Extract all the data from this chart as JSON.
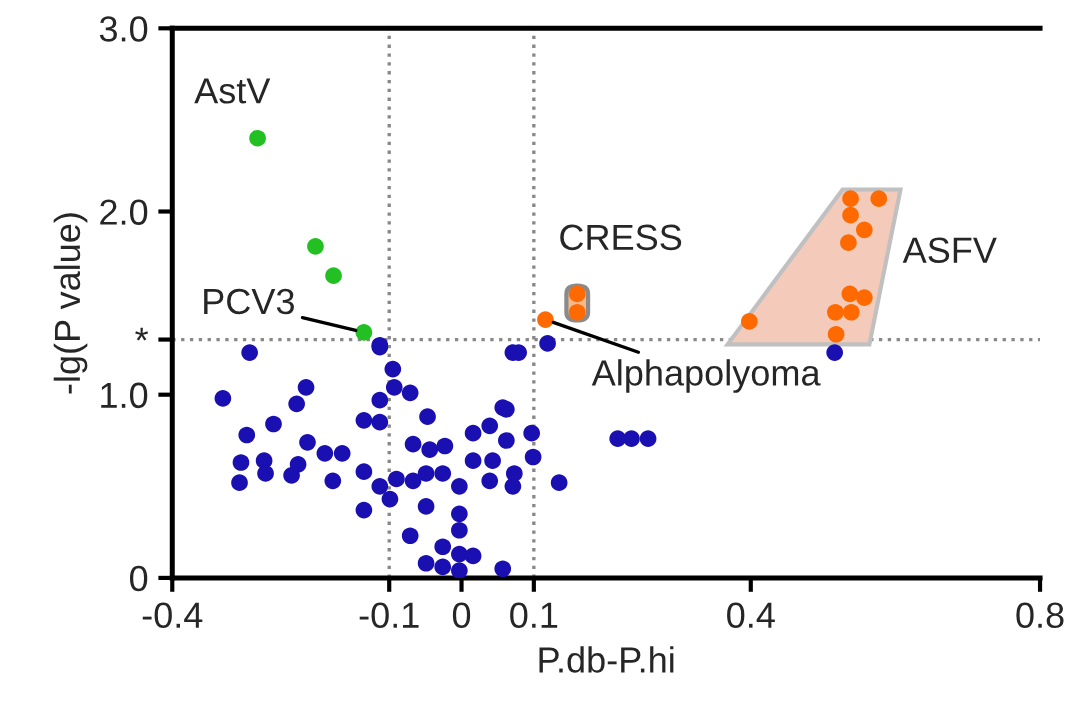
{
  "chart_data": {
    "type": "scatter",
    "xlabel": "P.db-P.hi",
    "ylabel": "-lg(P value)",
    "xlim": [
      -0.4,
      0.8
    ],
    "xticks": [
      -0.4,
      -0.1,
      0,
      0.1,
      0.4,
      0.8
    ],
    "ylim": [
      0,
      3.0
    ],
    "yticks": [
      0,
      {
        "value": 1.0,
        "label": "1.0"
      },
      {
        "value": 1.301,
        "label": "*"
      },
      {
        "value": 2.0,
        "label": "2.0"
      },
      {
        "value": 3.0,
        "label": "3.0"
      }
    ],
    "grid": false,
    "legend": false,
    "marker": "circle",
    "ref_lines": [
      {
        "axis": "x",
        "value": -0.1,
        "color": "#888888",
        "line_style": "dotted"
      },
      {
        "axis": "x",
        "value": 0.1,
        "color": "#888888",
        "line_style": "dotted"
      },
      {
        "axis": "y",
        "value": 1.301,
        "color": "#888888",
        "line_style": "dotted"
      }
    ],
    "series": [
      {
        "color": "#1a0fb0",
        "x": [
          -0.33,
          -0.293,
          -0.297,
          -0.26,
          -0.305,
          -0.307,
          -0.273,
          -0.271,
          -0.235,
          -0.226,
          -0.213,
          -0.228,
          -0.215,
          -0.189,
          -0.165,
          -0.178,
          -0.135,
          -0.113,
          -0.113,
          -0.135,
          -0.113,
          -0.135,
          -0.113,
          -0.095,
          -0.093,
          -0.071,
          -0.099,
          -0.071,
          -0.049,
          -0.047,
          -0.049,
          -0.09,
          -0.067,
          -0.067,
          -0.023,
          -0.044,
          -0.026,
          -0.003,
          -0.003,
          -0.003,
          -0.026,
          -0.003,
          -0.026,
          0.016,
          -0.003,
          -0.049,
          0.057,
          0.016,
          0.016,
          0.039,
          0.057,
          0.043,
          0.039,
          0.062,
          0.071,
          0.079,
          0.119,
          0.062,
          0.097,
          0.099,
          0.135,
          0.216,
          0.235,
          0.258,
          0.516,
          0.071,
          0.073,
          -0.113
        ],
        "values": [
          0.98,
          1.23,
          0.78,
          0.84,
          0.63,
          0.52,
          0.64,
          0.57,
          0.56,
          0.62,
          0.74,
          0.95,
          1.04,
          0.68,
          0.68,
          0.53,
          0.86,
          0.85,
          0.97,
          0.58,
          0.5,
          0.37,
          1.26,
          1.14,
          1.04,
          1.01,
          0.43,
          0.23,
          0.39,
          0.88,
          0.57,
          0.54,
          0.53,
          0.73,
          0.72,
          0.7,
          0.57,
          0.5,
          0.35,
          0.26,
          0.17,
          0.13,
          0.06,
          0.12,
          0.04,
          0.08,
          0.05,
          0.64,
          0.79,
          0.83,
          0.93,
          0.64,
          0.53,
          0.75,
          1.23,
          1.23,
          1.28,
          0.92,
          0.79,
          0.66,
          0.52,
          0.76,
          0.76,
          0.76,
          1.23,
          0.5,
          0.57,
          1.27
        ]
      },
      {
        "color": "#22c022",
        "x": [
          -0.282,
          -0.202,
          -0.177,
          -0.135
        ],
        "values": [
          2.4,
          1.81,
          1.65,
          1.34
        ]
      },
      {
        "color": "#ff6a00",
        "x": [
          0.116
        ],
        "values": [
          1.41
        ]
      },
      {
        "color": "#ff6a00",
        "x": [
          0.16,
          0.16
        ],
        "values": [
          1.45,
          1.55
        ]
      },
      {
        "color": "#ff6a00",
        "x": [
          0.398,
          0.538,
          0.577,
          0.538,
          0.557,
          0.535,
          0.537,
          0.557,
          0.517,
          0.539,
          0.518
        ],
        "values": [
          1.4,
          2.07,
          2.07,
          1.98,
          1.9,
          1.83,
          1.55,
          1.53,
          1.45,
          1.45,
          1.33
        ]
      }
    ],
    "annotations": [
      {
        "text": "AstV",
        "x": -0.282,
        "y": 2.4
      },
      {
        "text": "PCV3",
        "x": -0.135,
        "y": 1.34
      },
      {
        "text": "CRESS",
        "x": 0.16,
        "y": 1.55
      },
      "ASFV",
      {
        "text": "Alphapolyoma",
        "x": 0.116,
        "y": 1.41
      }
    ]
  }
}
